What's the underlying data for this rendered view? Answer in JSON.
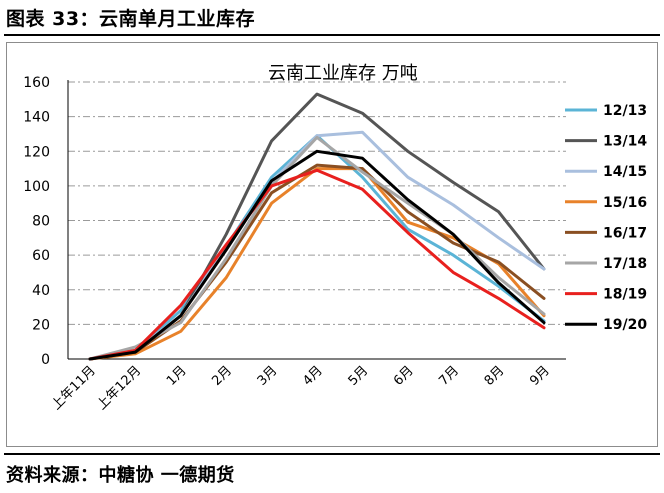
{
  "figure_title": "图表 33：云南单月工业库存",
  "source_note": "资料来源：中糖协  一德期货",
  "chart_data": {
    "type": "line",
    "title": "云南工业库存  万吨",
    "xlabel": "",
    "ylabel": "",
    "categories": [
      "上年11月",
      "上年12月",
      "1月",
      "2月",
      "3月",
      "4月",
      "5月",
      "6月",
      "7月",
      "8月",
      "9月"
    ],
    "ylim": [
      0,
      160
    ],
    "yticks": [
      0,
      20,
      40,
      60,
      80,
      100,
      120,
      140,
      160
    ],
    "grid": "horizontal dash-dot",
    "legend_position": "right",
    "series": [
      {
        "name": "12/13",
        "color": "#5bb4d6",
        "values": [
          0,
          5,
          28,
          65,
          105,
          129,
          105,
          75,
          60,
          42,
          22
        ]
      },
      {
        "name": "13/14",
        "color": "#555555",
        "values": [
          0,
          4,
          25,
          72,
          126,
          153,
          142,
          120,
          102,
          85,
          52
        ]
      },
      {
        "name": "14/15",
        "color": "#a9bfde",
        "values": [
          0,
          5,
          25,
          65,
          102,
          129,
          131,
          105,
          89,
          70,
          52
        ]
      },
      {
        "name": "15/16",
        "color": "#e8822a",
        "values": [
          0,
          3,
          16,
          47,
          90,
          110,
          110,
          79,
          70,
          55,
          25
        ]
      },
      {
        "name": "16/17",
        "color": "#8a4f22",
        "values": [
          0,
          4,
          22,
          56,
          96,
          112,
          110,
          85,
          67,
          56,
          35
        ]
      },
      {
        "name": "17/18",
        "color": "#a6a6a6",
        "values": [
          0,
          7,
          21,
          58,
          100,
          128,
          108,
          90,
          72,
          47,
          26
        ]
      },
      {
        "name": "18/19",
        "color": "#e8201e",
        "values": [
          0,
          5,
          31,
          66,
          100,
          109,
          98,
          73,
          50,
          35,
          18
        ]
      },
      {
        "name": "19/20",
        "color": "#000000",
        "values": [
          0,
          4,
          25,
          63,
          103,
          120,
          116,
          92,
          72,
          44,
          21
        ]
      }
    ]
  }
}
